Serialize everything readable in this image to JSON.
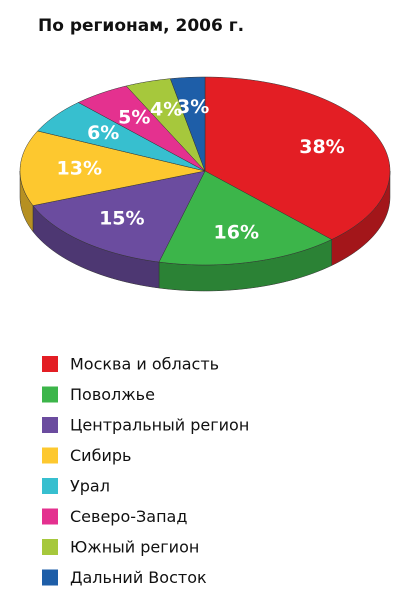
{
  "chart_data": {
    "type": "pie",
    "title": "По регионам, 2006 г.",
    "categories": [
      "Москва и область",
      "Поволжье",
      "Центральный регион",
      "Сибирь",
      "Урал",
      "Северо-Запад",
      "Южный регион",
      "Дальний Восток"
    ],
    "values": [
      38,
      16,
      15,
      13,
      6,
      5,
      4,
      3
    ],
    "value_labels": [
      "38%",
      "16%",
      "15%",
      "13%",
      "6%",
      "5%",
      "4%",
      "3%"
    ],
    "colors": [
      "#e31e24",
      "#3cb54a",
      "#6b4c9f",
      "#fdc82f",
      "#37bfcf",
      "#e4318f",
      "#a6c83c",
      "#1e5ea8"
    ]
  }
}
